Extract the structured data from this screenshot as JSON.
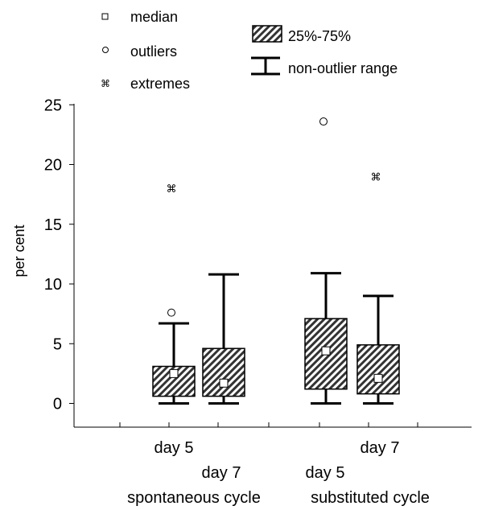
{
  "chart_data": {
    "type": "box",
    "ylabel": "per cent",
    "ylim": [
      -2,
      25
    ],
    "yticks": [
      0,
      5,
      10,
      15,
      20,
      25
    ],
    "legend": {
      "median": "median",
      "outliers": "outliers",
      "extremes": "extremes",
      "box": "25%-75%",
      "whisker": "non-outlier range"
    },
    "groups": [
      {
        "label": "spontaneous cycle",
        "boxes": [
          {
            "label": "day 5",
            "min": 0,
            "q1": 0.6,
            "median": 2.5,
            "q3": 3.1,
            "max": 6.7,
            "outliers": [
              7.6
            ],
            "extremes": [
              18.0
            ]
          },
          {
            "label": "day 7",
            "min": 0,
            "q1": 0.6,
            "median": 1.7,
            "q3": 4.6,
            "max": 10.8,
            "outliers": [],
            "extremes": []
          }
        ]
      },
      {
        "label": "substituted cycle",
        "boxes": [
          {
            "label": "day 5",
            "min": 0,
            "q1": 1.2,
            "median": 4.4,
            "q3": 7.1,
            "max": 10.9,
            "outliers": [
              23.6
            ],
            "extremes": []
          },
          {
            "label": "day 7",
            "min": 0,
            "q1": 0.8,
            "median": 2.1,
            "q3": 4.9,
            "max": 9.0,
            "outliers": [],
            "extremes": [
              19.0
            ]
          }
        ]
      }
    ]
  }
}
